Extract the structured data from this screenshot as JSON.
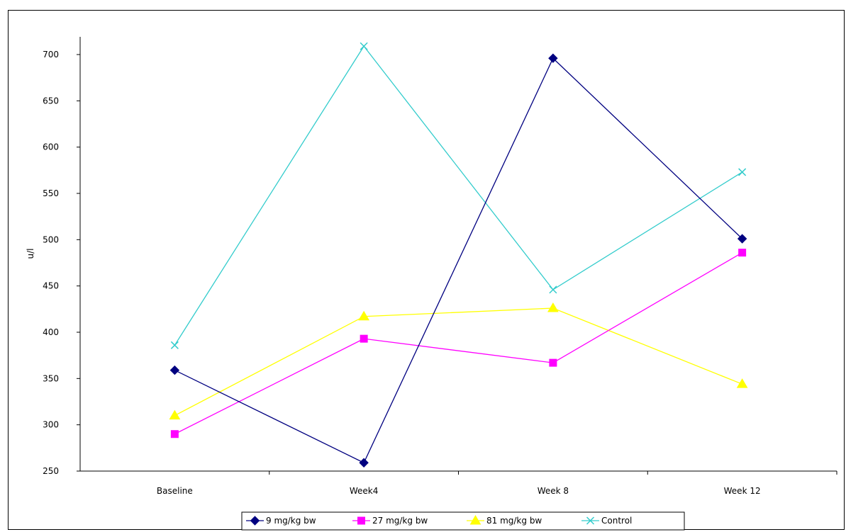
{
  "chart_data": {
    "type": "line",
    "title": "",
    "xlabel": "",
    "ylabel": "u/l",
    "categories": [
      "Baseline",
      "Week4",
      "Week 8",
      "Week 12"
    ],
    "ylim": [
      250,
      700
    ],
    "yticks": [
      250,
      300,
      350,
      400,
      450,
      500,
      550,
      600,
      650,
      700
    ],
    "grid": false,
    "legend_position": "bottom",
    "series": [
      {
        "name": "9 mg/kg bw",
        "values": [
          359,
          259,
          696,
          501
        ],
        "color": "#000080",
        "marker": "diamond"
      },
      {
        "name": "27 mg/kg bw",
        "values": [
          290,
          393,
          367,
          486
        ],
        "color": "#FF00FF",
        "marker": "square"
      },
      {
        "name": "81 mg/kg bw",
        "values": [
          310,
          417,
          426,
          344
        ],
        "color": "#FFFF00",
        "marker": "triangle"
      },
      {
        "name": "Control",
        "values": [
          386,
          709,
          446,
          573
        ],
        "color": "#33CCCC",
        "marker": "x"
      }
    ]
  }
}
